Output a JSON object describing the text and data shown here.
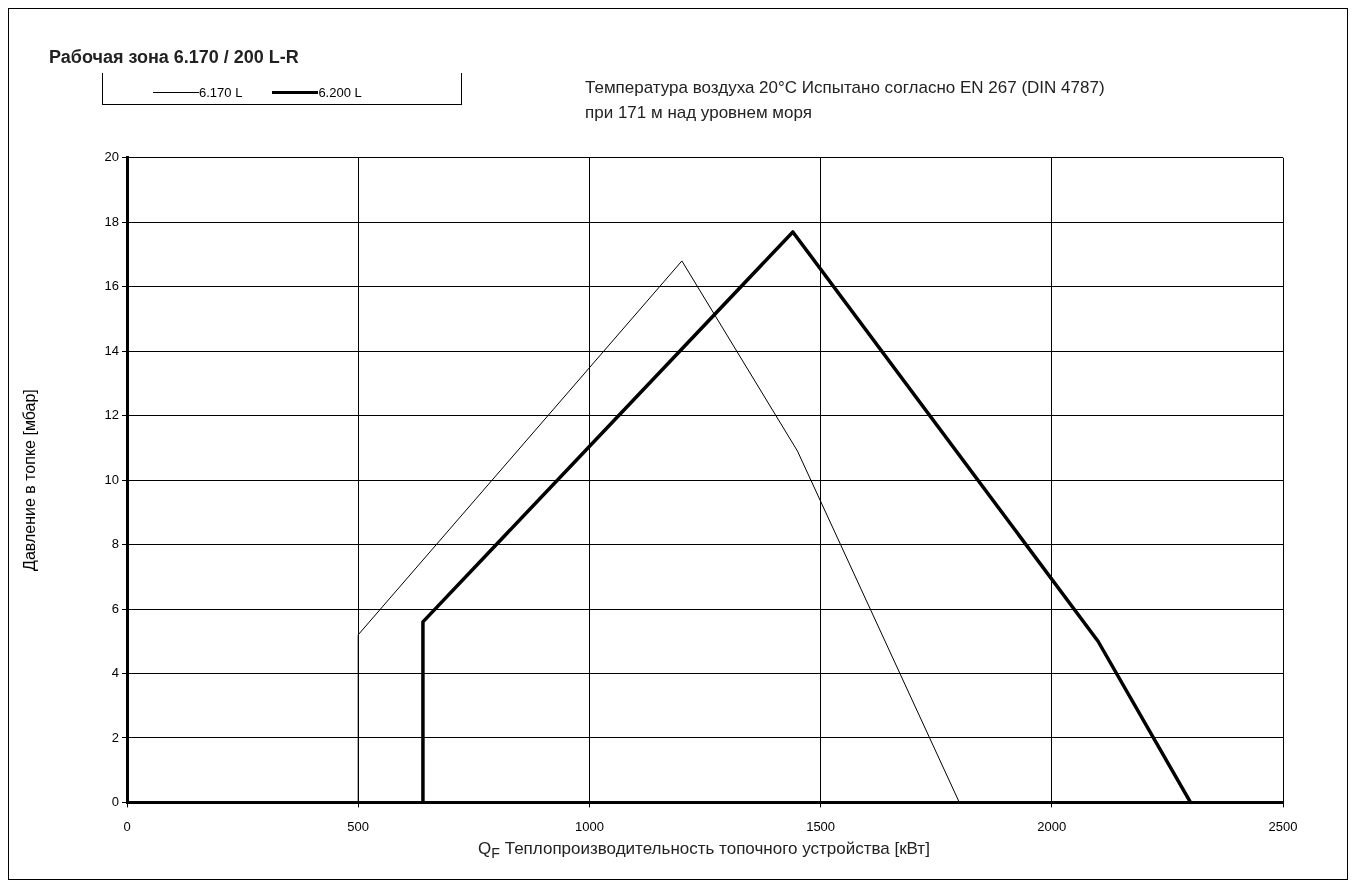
{
  "chart_data": {
    "type": "line",
    "title": "Рабочая зона 6.170 / 200 L-R",
    "annotations": [
      "Температура воздуха 20°C Испытано согласно EN 267 (DIN 4787)",
      "при 171 м над уровнем моря"
    ],
    "xlabel": "Q$_{F}$ Теплопроизводительность топочного устройства [кВт]",
    "ylabel": "Давление в топке [мбар]",
    "xlim": [
      0,
      2500
    ],
    "xticks": [
      0,
      500,
      1000,
      1500,
      2000,
      2500
    ],
    "ylim": [
      0,
      20
    ],
    "yticks": [
      0,
      2,
      4,
      6,
      8,
      10,
      12,
      14,
      16,
      18,
      20
    ],
    "grid": true,
    "legend": "top left",
    "marker": "none",
    "line_style": "solid",
    "series": [
      {
        "name": "6.170 L",
        "color": "#000000",
        "x": [
          500,
          500,
          1200,
          1450,
          1800
        ],
        "values": [
          0,
          5.2,
          16.8,
          10.9,
          0
        ]
      },
      {
        "name": "6.200 L",
        "color": "#000000",
        "x": [
          640,
          640,
          1440,
          2100,
          2300
        ],
        "values": [
          0,
          5.6,
          17.7,
          5.0,
          0
        ]
      }
    ]
  }
}
